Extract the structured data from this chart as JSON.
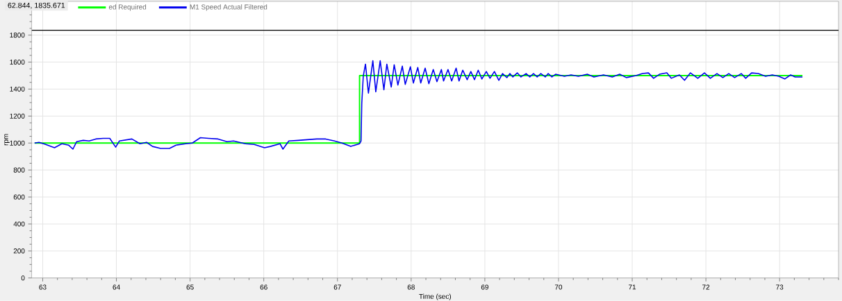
{
  "chart_data": {
    "type": "line",
    "xlabel": "Time (sec)",
    "ylabel": "rpm",
    "annotations": [
      "62.844, 1835.671"
    ],
    "xlim": [
      62.85,
      73.8
    ],
    "ylim": [
      0,
      2050
    ],
    "xticks": [
      63,
      64,
      65,
      66,
      67,
      68,
      69,
      70,
      71,
      72,
      73
    ],
    "yticks": [
      0,
      200,
      400,
      600,
      800,
      1000,
      1200,
      1400,
      1600,
      1800
    ],
    "grid": true,
    "legend": "top left",
    "ref_lines": [
      {
        "axis": "y",
        "value": 1835.671,
        "color": "#000000"
      }
    ],
    "series": [
      {
        "name": "ed Required",
        "type": "step",
        "color": "#00ff00",
        "x": [
          62.89,
          67.3,
          73.31
        ],
        "values": [
          1000,
          1500,
          1500
        ]
      },
      {
        "name": "M1 Speed Actual Filtered",
        "type": "line",
        "color": "#0000ee",
        "x": [
          62.89,
          62.95,
          63.04,
          63.16,
          63.26,
          63.35,
          63.41,
          63.46,
          63.55,
          63.63,
          63.72,
          63.82,
          63.91,
          63.99,
          64.04,
          64.21,
          64.32,
          64.41,
          64.49,
          64.6,
          64.72,
          64.81,
          64.94,
          65.03,
          65.14,
          65.25,
          65.38,
          65.5,
          65.59,
          65.75,
          65.87,
          66.01,
          66.09,
          66.22,
          66.26,
          66.34,
          66.47,
          66.59,
          66.72,
          66.84,
          66.96,
          67.06,
          67.18,
          67.3,
          67.32,
          67.33,
          67.35,
          67.38,
          67.42,
          67.48,
          67.52,
          67.58,
          67.63,
          67.67,
          67.73,
          67.77,
          67.82,
          67.88,
          67.92,
          67.99,
          68.03,
          68.09,
          68.13,
          68.19,
          68.24,
          68.3,
          68.35,
          68.41,
          68.44,
          68.5,
          68.55,
          68.61,
          68.65,
          68.7,
          68.76,
          68.81,
          68.86,
          68.91,
          68.96,
          69.02,
          69.07,
          69.13,
          69.19,
          69.24,
          69.3,
          69.34,
          69.38,
          69.44,
          69.49,
          69.56,
          69.61,
          69.66,
          69.71,
          69.76,
          69.82,
          69.86,
          69.91,
          69.96,
          70.08,
          70.17,
          70.27,
          70.39,
          70.48,
          70.61,
          70.73,
          70.83,
          70.92,
          71.05,
          71.14,
          71.22,
          71.29,
          71.37,
          71.47,
          71.53,
          71.64,
          71.71,
          71.79,
          71.89,
          71.98,
          72.06,
          72.15,
          72.23,
          72.31,
          72.39,
          72.48,
          72.54,
          72.62,
          72.71,
          72.81,
          72.9,
          72.99,
          73.07,
          73.15,
          73.21,
          73.31
        ],
        "values": [
          1000,
          1005,
          990,
          965,
          995,
          985,
          955,
          1010,
          1020,
          1015,
          1030,
          1035,
          1035,
          970,
          1015,
          1030,
          995,
          1005,
          975,
          960,
          960,
          985,
          995,
          1000,
          1040,
          1035,
          1030,
          1010,
          1015,
          995,
          990,
          965,
          975,
          995,
          955,
          1015,
          1020,
          1025,
          1030,
          1030,
          1015,
          1000,
          975,
          995,
          1015,
          1295,
          1495,
          1585,
          1370,
          1610,
          1380,
          1610,
          1395,
          1585,
          1415,
          1580,
          1430,
          1570,
          1435,
          1565,
          1445,
          1560,
          1445,
          1555,
          1440,
          1545,
          1455,
          1545,
          1460,
          1545,
          1460,
          1555,
          1460,
          1540,
          1470,
          1530,
          1470,
          1540,
          1475,
          1530,
          1480,
          1530,
          1465,
          1515,
          1485,
          1515,
          1490,
          1520,
          1490,
          1515,
          1490,
          1515,
          1490,
          1515,
          1490,
          1515,
          1490,
          1510,
          1495,
          1505,
          1495,
          1510,
          1490,
          1505,
          1490,
          1510,
          1485,
          1500,
          1515,
          1520,
          1480,
          1510,
          1520,
          1480,
          1505,
          1465,
          1520,
          1480,
          1520,
          1480,
          1515,
          1485,
          1515,
          1485,
          1515,
          1480,
          1520,
          1515,
          1495,
          1505,
          1495,
          1475,
          1505,
          1490,
          1490
        ]
      }
    ]
  }
}
